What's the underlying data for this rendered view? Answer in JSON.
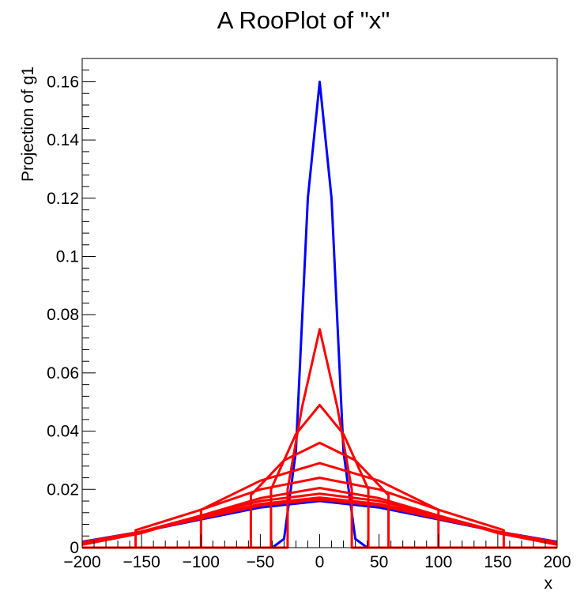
{
  "chart_data": {
    "type": "line",
    "title": "A RooPlot of \"x\"",
    "xlabel": "x",
    "ylabel": "Projection of g1",
    "xlim": [
      -200,
      200
    ],
    "ylim": [
      0,
      0.168
    ],
    "x_ticks": [
      -200,
      -150,
      -100,
      -50,
      0,
      50,
      100,
      150,
      200
    ],
    "x_tick_labels": [
      "−200",
      "−150",
      "−100",
      "−50",
      "0",
      "50",
      "100",
      "150",
      "200"
    ],
    "y_ticks": [
      0,
      0.02,
      0.04,
      0.06,
      0.08,
      0.1,
      0.12,
      0.14,
      0.16
    ],
    "y_tick_labels": [
      "0",
      "0.02",
      "0.04",
      "0.06",
      "0.08",
      "0.1",
      "0.12",
      "0.14",
      "0.16"
    ],
    "grid": false,
    "legend": false,
    "colors": {
      "blue": "#0000ff",
      "red": "#ff0000",
      "frame": "#000000"
    },
    "series": [
      {
        "color": "#0000ff",
        "points": [
          [
            -200,
            0
          ],
          [
            -40,
            0
          ],
          [
            -30,
            0.003
          ],
          [
            -20,
            0.033
          ],
          [
            -10,
            0.12
          ],
          [
            0,
            0.16
          ],
          [
            10,
            0.12
          ],
          [
            20,
            0.033
          ],
          [
            30,
            0.003
          ],
          [
            40,
            0
          ],
          [
            200,
            0
          ]
        ]
      },
      {
        "color": "#0000ff",
        "points": [
          [
            -200,
            0.002
          ],
          [
            -150,
            0.0055
          ],
          [
            -100,
            0.0097
          ],
          [
            -50,
            0.0138
          ],
          [
            0,
            0.016
          ],
          [
            50,
            0.0138
          ],
          [
            100,
            0.0097
          ],
          [
            150,
            0.0055
          ],
          [
            200,
            0.002
          ]
        ]
      },
      {
        "color": "#ff0000",
        "points": [
          [
            -200,
            0
          ],
          [
            -27,
            0
          ],
          [
            -27,
            0.02
          ],
          [
            -15,
            0.048
          ],
          [
            0,
            0.075
          ],
          [
            15,
            0.048
          ],
          [
            27,
            0.02
          ],
          [
            27,
            0
          ],
          [
            200,
            0
          ]
        ]
      },
      {
        "color": "#ff0000",
        "points": [
          [
            -200,
            0
          ],
          [
            -41,
            0
          ],
          [
            -41,
            0.02
          ],
          [
            -20,
            0.039
          ],
          [
            0,
            0.049
          ],
          [
            20,
            0.039
          ],
          [
            41,
            0.02
          ],
          [
            41,
            0
          ],
          [
            200,
            0
          ]
        ]
      },
      {
        "color": "#ff0000",
        "points": [
          [
            -200,
            0
          ],
          [
            -58,
            0
          ],
          [
            -58,
            0.018
          ],
          [
            -30,
            0.03
          ],
          [
            0,
            0.036
          ],
          [
            30,
            0.03
          ],
          [
            58,
            0.018
          ],
          [
            58,
            0
          ],
          [
            200,
            0
          ]
        ]
      },
      {
        "color": "#ff0000",
        "points": [
          [
            -200,
            0
          ],
          [
            -100,
            0
          ],
          [
            -100,
            0.013
          ],
          [
            -50,
            0.023
          ],
          [
            0,
            0.029
          ],
          [
            50,
            0.023
          ],
          [
            100,
            0.013
          ],
          [
            100,
            0
          ],
          [
            200,
            0
          ]
        ]
      },
      {
        "color": "#ff0000",
        "points": [
          [
            -200,
            0
          ],
          [
            -155,
            0
          ],
          [
            -155,
            0.006
          ],
          [
            -100,
            0.013
          ],
          [
            -50,
            0.02
          ],
          [
            0,
            0.024
          ],
          [
            50,
            0.02
          ],
          [
            100,
            0.013
          ],
          [
            155,
            0.006
          ],
          [
            155,
            0
          ],
          [
            200,
            0
          ]
        ]
      },
      {
        "color": "#ff0000",
        "points": [
          [
            -200,
            0.001
          ],
          [
            -150,
            0.005
          ],
          [
            -100,
            0.011
          ],
          [
            -50,
            0.017
          ],
          [
            0,
            0.0205
          ],
          [
            50,
            0.017
          ],
          [
            100,
            0.011
          ],
          [
            150,
            0.005
          ],
          [
            200,
            0.001
          ]
        ]
      },
      {
        "color": "#ff0000",
        "points": [
          [
            -200,
            0.001
          ],
          [
            -150,
            0.0055
          ],
          [
            -100,
            0.011
          ],
          [
            -50,
            0.016
          ],
          [
            0,
            0.0185
          ],
          [
            50,
            0.016
          ],
          [
            100,
            0.011
          ],
          [
            150,
            0.0055
          ],
          [
            200,
            0.001
          ]
        ]
      },
      {
        "color": "#ff0000",
        "points": [
          [
            -200,
            0.0015
          ],
          [
            -150,
            0.0055
          ],
          [
            -100,
            0.0105
          ],
          [
            -50,
            0.015
          ],
          [
            0,
            0.0172
          ],
          [
            50,
            0.015
          ],
          [
            100,
            0.0105
          ],
          [
            150,
            0.0055
          ],
          [
            200,
            0.0015
          ]
        ]
      },
      {
        "color": "#ff0000",
        "points": [
          [
            -200,
            0.0018
          ],
          [
            -150,
            0.0055
          ],
          [
            -100,
            0.01
          ],
          [
            -50,
            0.0145
          ],
          [
            0,
            0.0165
          ],
          [
            50,
            0.0145
          ],
          [
            100,
            0.01
          ],
          [
            150,
            0.0055
          ],
          [
            200,
            0.0018
          ]
        ]
      }
    ]
  }
}
